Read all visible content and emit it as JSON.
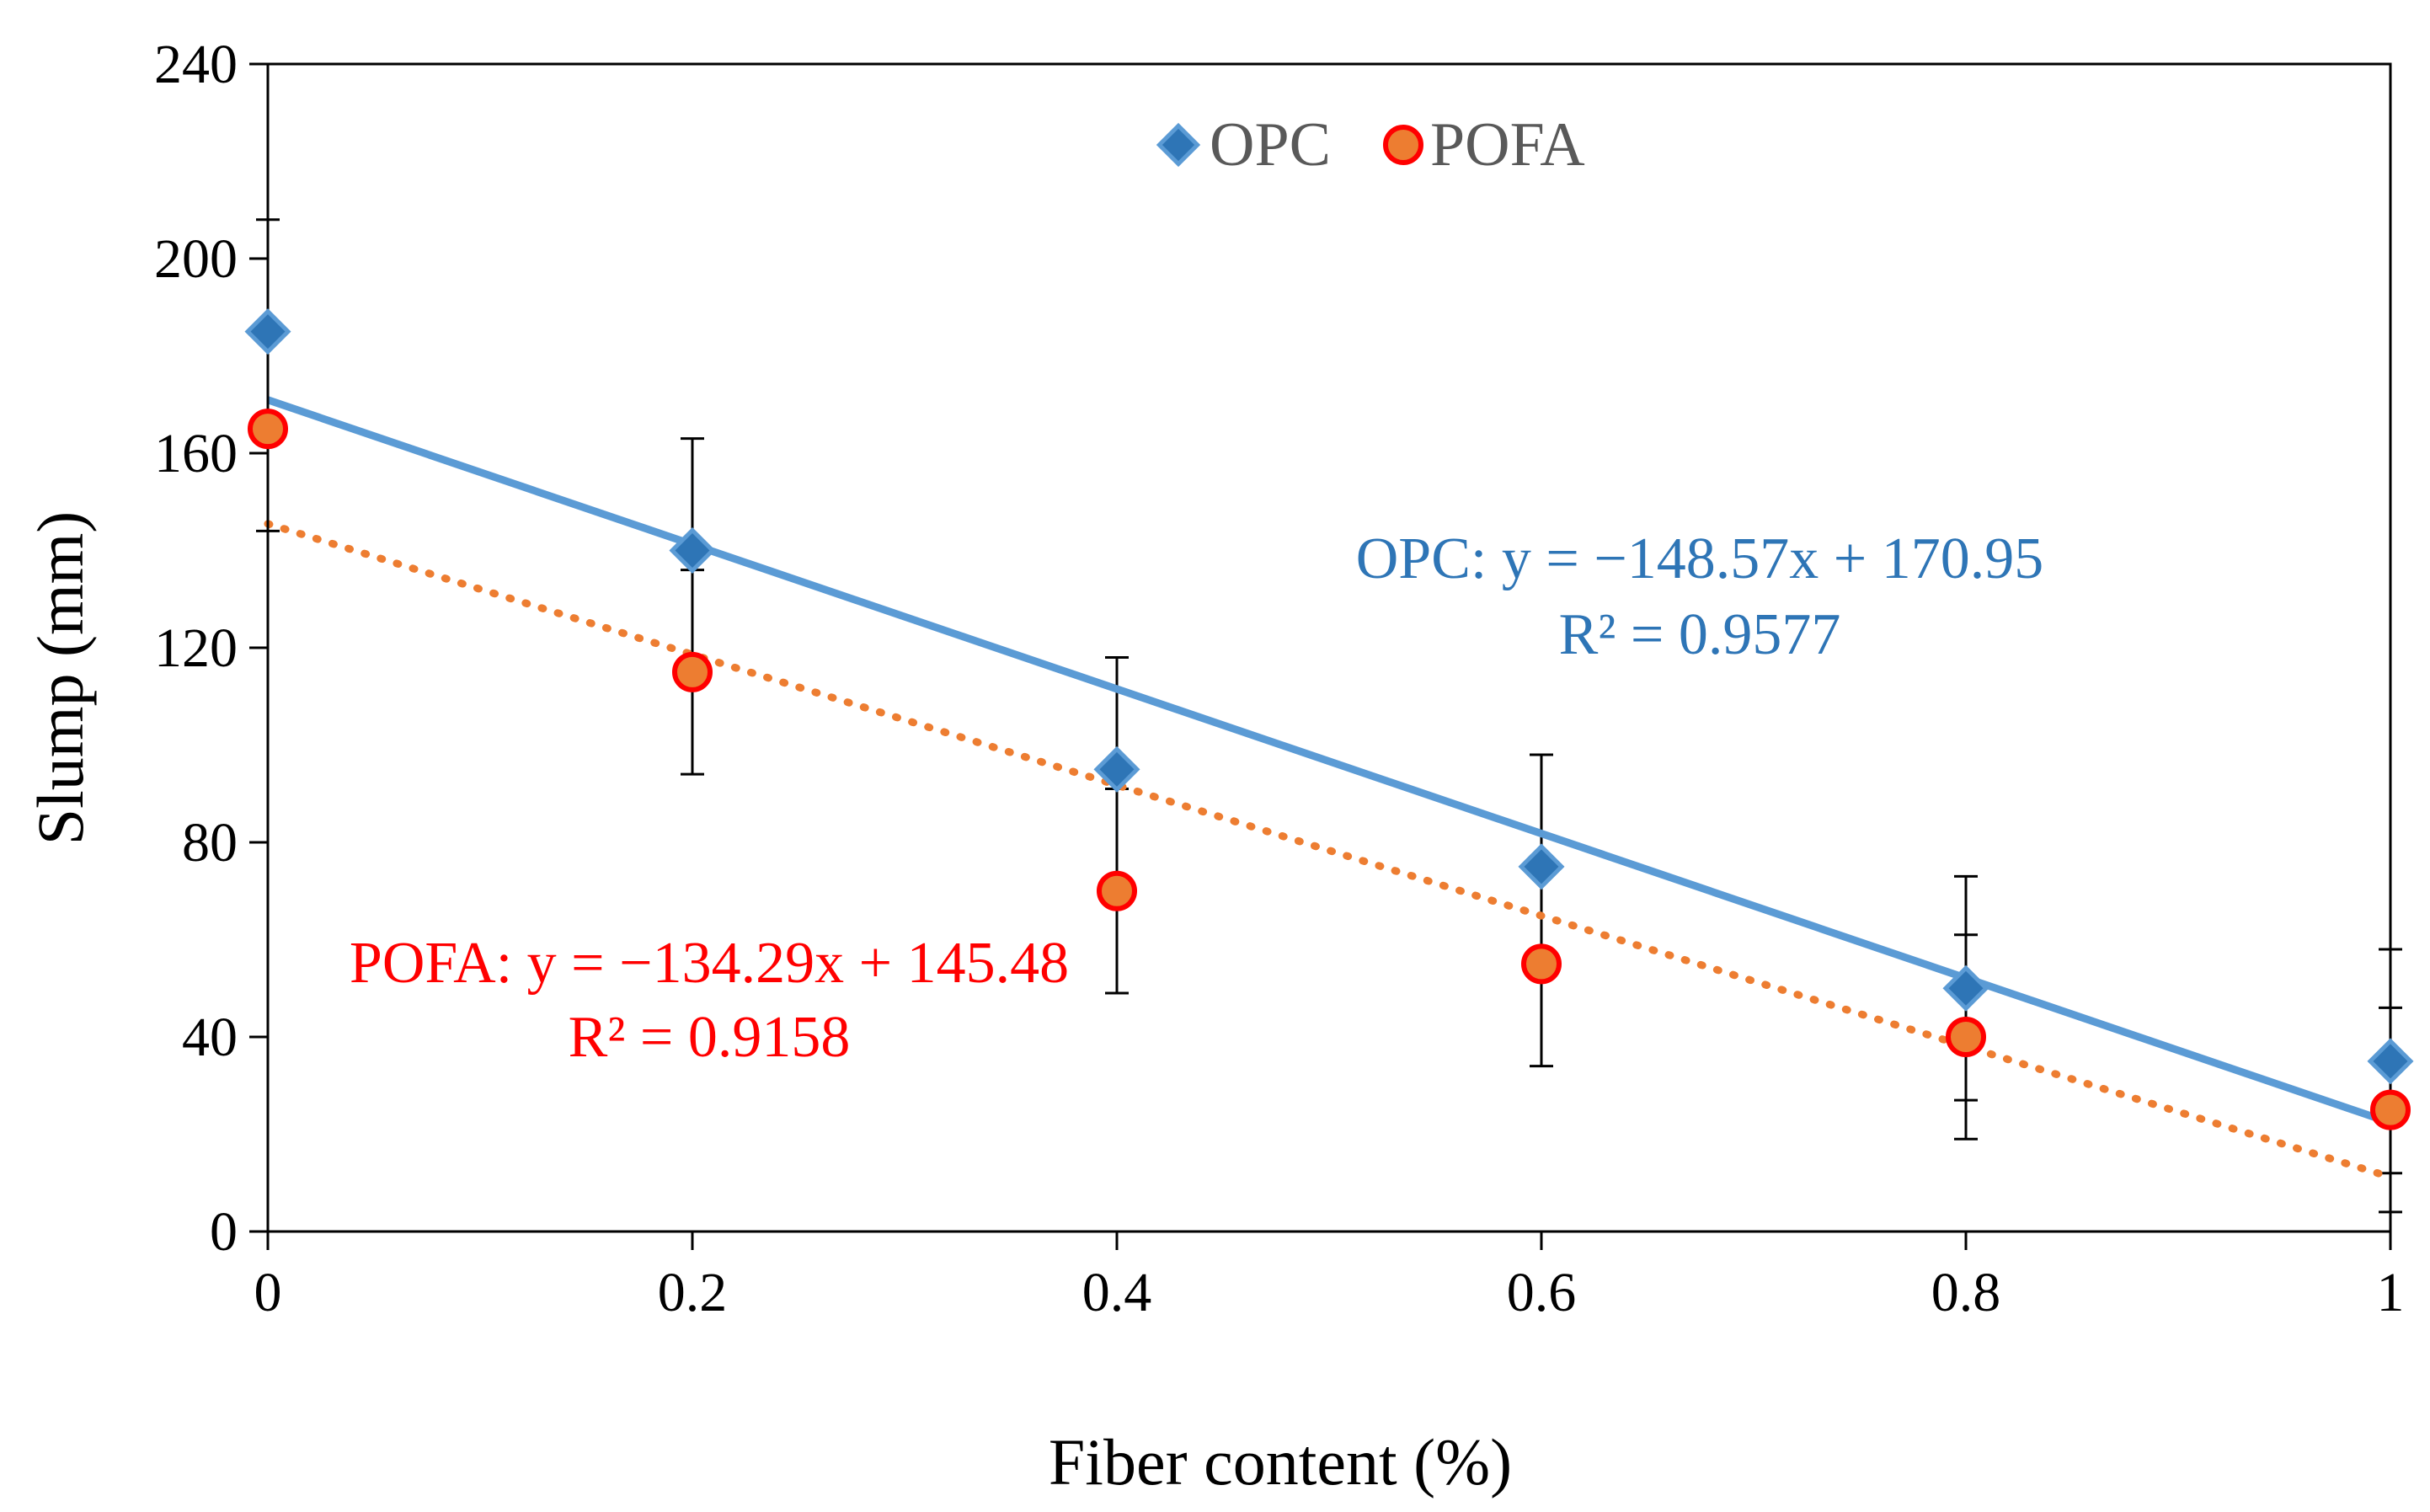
{
  "chart_data": {
    "type": "scatter",
    "xlabel": "Fiber content (%)",
    "ylabel": "Slump (mm)",
    "xlim": [
      0,
      1
    ],
    "ylim": [
      0,
      240
    ],
    "x_ticks": [
      0,
      0.2,
      0.4,
      0.6,
      0.8,
      1
    ],
    "x_tick_labels": [
      "0",
      "0.2",
      "0.4",
      "0.6",
      "0.8",
      "1"
    ],
    "y_ticks": [
      0,
      40,
      80,
      120,
      160,
      200,
      240
    ],
    "y_tick_labels": [
      "0",
      "40",
      "80",
      "120",
      "160",
      "200",
      "240"
    ],
    "grid": false,
    "legend_position": "top-center",
    "series": [
      {
        "name": "OPC",
        "marker": "diamond",
        "color": "#2E75B6",
        "x": [
          0,
          0.2,
          0.4,
          0.6,
          0.8,
          1
        ],
        "values": [
          185,
          140,
          95,
          75,
          50,
          35
        ],
        "error": [
          23,
          23,
          23,
          23,
          23,
          23
        ],
        "trendline": {
          "style": "solid",
          "color": "#5B9BD5",
          "slope": -148.57,
          "intercept": 170.95,
          "equation": "OPC: y = −148.57x + 170.95",
          "r2": "R² = 0.9577",
          "text_color": "#2E75B6"
        }
      },
      {
        "name": "POFA",
        "marker": "circle",
        "color": "#ED7D31",
        "edge_color": "#FF0000",
        "x": [
          0,
          0.2,
          0.4,
          0.6,
          0.8,
          1
        ],
        "values": [
          165,
          115,
          70,
          55,
          40,
          25
        ],
        "error": [
          21,
          21,
          21,
          21,
          21,
          21
        ],
        "trendline": {
          "style": "dotted",
          "color": "#ED7D31",
          "slope": -134.29,
          "intercept": 145.48,
          "equation": "POFA: y = −134.29x + 145.48",
          "r2": "R² = 0.9158",
          "text_color": "#FF0000"
        }
      }
    ]
  }
}
